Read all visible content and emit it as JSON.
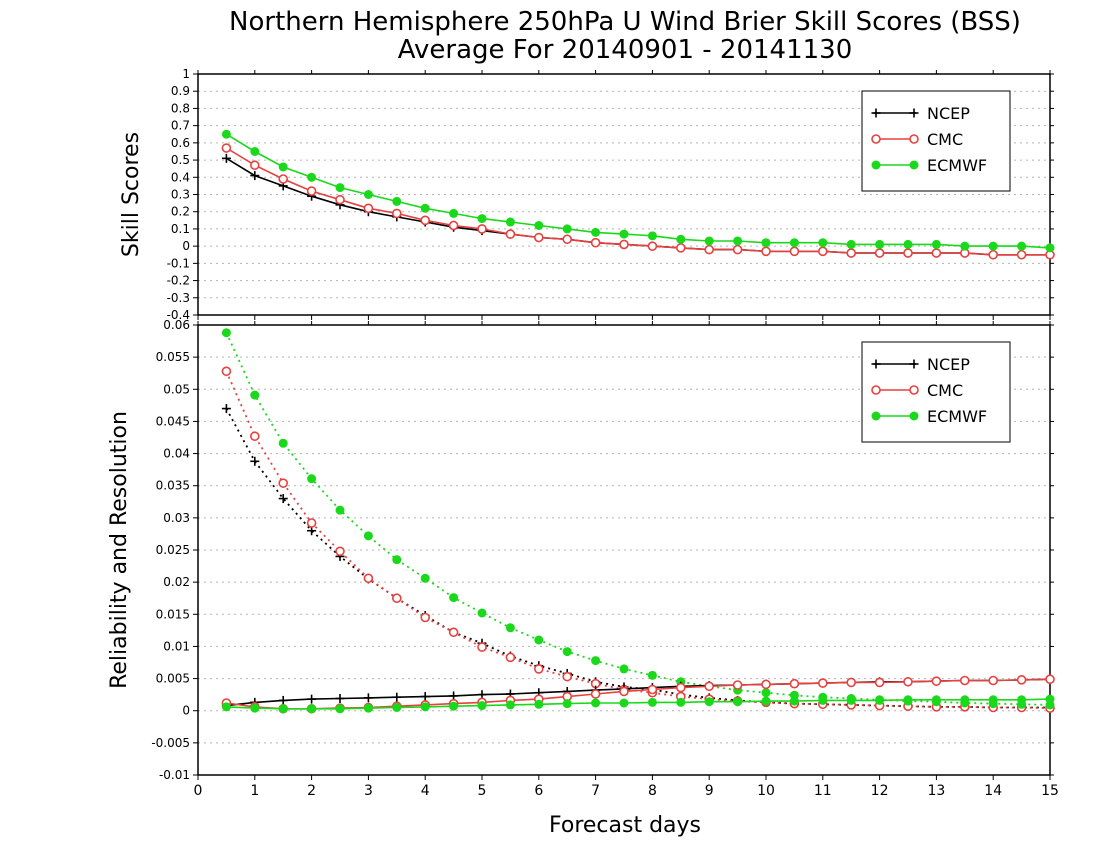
{
  "title_line1": "Northern Hemisphere 250hPa U Wind Brier Skill Scores (BSS)",
  "title_line2": "Average For 20140901 - 20141130",
  "xlabel": "Forecast days",
  "colors": {
    "NCEP": "#000000",
    "CMC": "#e8403f",
    "ECMWF": "#1ad81a"
  },
  "chart_data": [
    {
      "type": "line",
      "ylabel": "Skill Scores",
      "xlim": [
        0,
        15
      ],
      "ylim": [
        -0.4,
        1
      ],
      "x_ticks": [
        0,
        1,
        2,
        3,
        4,
        5,
        6,
        7,
        8,
        9,
        10,
        11,
        12,
        13,
        14,
        15
      ],
      "y_ticks": [
        -0.4,
        -0.3,
        -0.2,
        -0.1,
        0,
        0.1,
        0.2,
        0.3,
        0.4,
        0.5,
        0.6,
        0.7,
        0.8,
        0.9,
        1
      ],
      "y_tick_labels": [
        "-0.4",
        "-0.3",
        "-0.2",
        "-0.1",
        "0",
        "0.1",
        "0.2",
        "0.3",
        "0.4",
        "0.5",
        "0.6",
        "0.7",
        "0.8",
        "0.9",
        "1"
      ],
      "grid": true,
      "legend_position": "top-right",
      "x": [
        0.5,
        1,
        1.5,
        2,
        2.5,
        3,
        3.5,
        4,
        4.5,
        5,
        5.5,
        6,
        6.5,
        7,
        7.5,
        8,
        8.5,
        9,
        9.5,
        10,
        10.5,
        11,
        11.5,
        12,
        12.5,
        13,
        13.5,
        14,
        14.5,
        15
      ],
      "series": [
        {
          "name": "NCEP",
          "style": "solid",
          "marker": "plus",
          "values": [
            0.51,
            0.41,
            0.35,
            0.29,
            0.24,
            0.2,
            0.17,
            0.14,
            0.11,
            0.09,
            0.07,
            0.05,
            0.04,
            0.02,
            0.01,
            0,
            -0.01,
            -0.02,
            -0.02,
            -0.03,
            -0.03,
            -0.03,
            -0.04,
            -0.04,
            -0.04,
            -0.04,
            -0.04,
            -0.05,
            -0.05,
            -0.05
          ]
        },
        {
          "name": "CMC",
          "style": "solid",
          "marker": "open-circle",
          "values": [
            0.57,
            0.47,
            0.39,
            0.32,
            0.27,
            0.22,
            0.19,
            0.15,
            0.12,
            0.1,
            0.07,
            0.05,
            0.04,
            0.02,
            0.01,
            0,
            -0.01,
            -0.02,
            -0.02,
            -0.03,
            -0.03,
            -0.03,
            -0.04,
            -0.04,
            -0.04,
            -0.04,
            -0.04,
            -0.05,
            -0.05,
            -0.05
          ]
        },
        {
          "name": "ECMWF",
          "style": "solid",
          "marker": "filled-circle",
          "values": [
            0.65,
            0.55,
            0.46,
            0.4,
            0.34,
            0.3,
            0.26,
            0.22,
            0.19,
            0.16,
            0.14,
            0.12,
            0.1,
            0.08,
            0.07,
            0.06,
            0.04,
            0.03,
            0.03,
            0.02,
            0.02,
            0.02,
            0.01,
            0.01,
            0.01,
            0.01,
            0,
            0,
            0,
            -0.01
          ]
        }
      ]
    },
    {
      "type": "line",
      "ylabel": "Reliability and Resolution",
      "xlim": [
        0,
        15
      ],
      "ylim": [
        -0.01,
        0.06
      ],
      "x_ticks": [
        0,
        1,
        2,
        3,
        4,
        5,
        6,
        7,
        8,
        9,
        10,
        11,
        12,
        13,
        14,
        15
      ],
      "y_ticks": [
        -0.01,
        -0.005,
        0,
        0.005,
        0.01,
        0.015,
        0.02,
        0.025,
        0.03,
        0.035,
        0.04,
        0.045,
        0.05,
        0.055,
        0.06
      ],
      "y_tick_labels": [
        "-0.01",
        "-0.005",
        "0",
        "0.005",
        "0.01",
        "0.015",
        "0.02",
        "0.025",
        "0.03",
        "0.035",
        "0.04",
        "0.045",
        "0.05",
        "0.055",
        "0.06"
      ],
      "grid": true,
      "legend_position": "top-right",
      "x": [
        0.5,
        1,
        1.5,
        2,
        2.5,
        3,
        3.5,
        4,
        4.5,
        5,
        5.5,
        6,
        6.5,
        7,
        7.5,
        8,
        8.5,
        9,
        9.5,
        10,
        10.5,
        11,
        11.5,
        12,
        12.5,
        13,
        13.5,
        14,
        14.5,
        15
      ],
      "series": [
        {
          "name": "NCEP",
          "group": "resolution",
          "style": "dotted",
          "marker": "plus",
          "values": [
            0.047,
            0.0388,
            0.033,
            0.028,
            0.024,
            0.0205,
            0.0175,
            0.0148,
            0.0122,
            0.0105,
            0.0085,
            0.007,
            0.0058,
            0.0045,
            0.0037,
            0.0033,
            0.0025,
            0.002,
            0.0016,
            0.0013,
            0.0011,
            0.001,
            0.0009,
            0.0008,
            0.0007,
            0.0006,
            0.0006,
            0.0005,
            0.0005,
            0.0005
          ]
        },
        {
          "name": "CMC",
          "group": "resolution",
          "style": "dotted",
          "marker": "open-circle",
          "values": [
            0.0528,
            0.0427,
            0.0354,
            0.0292,
            0.0248,
            0.0206,
            0.0175,
            0.0145,
            0.0122,
            0.0099,
            0.0083,
            0.0065,
            0.0053,
            0.0042,
            0.0033,
            0.0028,
            0.0022,
            0.0018,
            0.0015,
            0.0013,
            0.0011,
            0.001,
            0.0009,
            0.0008,
            0.0007,
            0.0006,
            0.0006,
            0.0005,
            0.0005,
            0.0004
          ]
        },
        {
          "name": "ECMWF",
          "group": "resolution",
          "style": "dotted",
          "marker": "filled-circle",
          "values": [
            0.0588,
            0.0491,
            0.0416,
            0.0361,
            0.0312,
            0.0272,
            0.0235,
            0.0206,
            0.0176,
            0.0152,
            0.0129,
            0.011,
            0.0092,
            0.0078,
            0.0065,
            0.0055,
            0.0045,
            0.0038,
            0.0032,
            0.0028,
            0.0024,
            0.0021,
            0.0019,
            0.0017,
            0.0015,
            0.0014,
            0.0012,
            0.0011,
            0.001,
            0.0009
          ]
        },
        {
          "name": "NCEP",
          "group": "reliability",
          "style": "solid",
          "marker": "plus",
          "values": [
            0.0008,
            0.0013,
            0.0016,
            0.0018,
            0.0019,
            0.002,
            0.0021,
            0.0022,
            0.0023,
            0.0025,
            0.0026,
            0.0028,
            0.003,
            0.0032,
            0.0034,
            0.0036,
            0.0038,
            0.0039,
            0.004,
            0.0041,
            0.0042,
            0.0043,
            0.0044,
            0.0045,
            0.0045,
            0.0046,
            0.0047,
            0.0047,
            0.0048,
            0.0049
          ]
        },
        {
          "name": "CMC",
          "group": "reliability",
          "style": "solid",
          "marker": "open-circle",
          "values": [
            0.0012,
            0.0006,
            0.0003,
            0.0003,
            0.0004,
            0.0005,
            0.0007,
            0.0009,
            0.0011,
            0.0013,
            0.0016,
            0.0018,
            0.0022,
            0.0026,
            0.003,
            0.0033,
            0.0036,
            0.0038,
            0.004,
            0.0041,
            0.0042,
            0.0043,
            0.0044,
            0.0044,
            0.0045,
            0.0046,
            0.0047,
            0.0047,
            0.0048,
            0.0049
          ]
        },
        {
          "name": "ECMWF",
          "group": "reliability",
          "style": "solid",
          "marker": "filled-circle",
          "values": [
            0.0006,
            0.0004,
            0.0003,
            0.0003,
            0.0003,
            0.0004,
            0.0005,
            0.0006,
            0.0007,
            0.0008,
            0.0009,
            0.001,
            0.0011,
            0.0012,
            0.0012,
            0.0013,
            0.0013,
            0.0014,
            0.0014,
            0.0015,
            0.0015,
            0.0016,
            0.0016,
            0.0016,
            0.0017,
            0.0017,
            0.0017,
            0.0017,
            0.0017,
            0.0018
          ]
        }
      ]
    }
  ]
}
